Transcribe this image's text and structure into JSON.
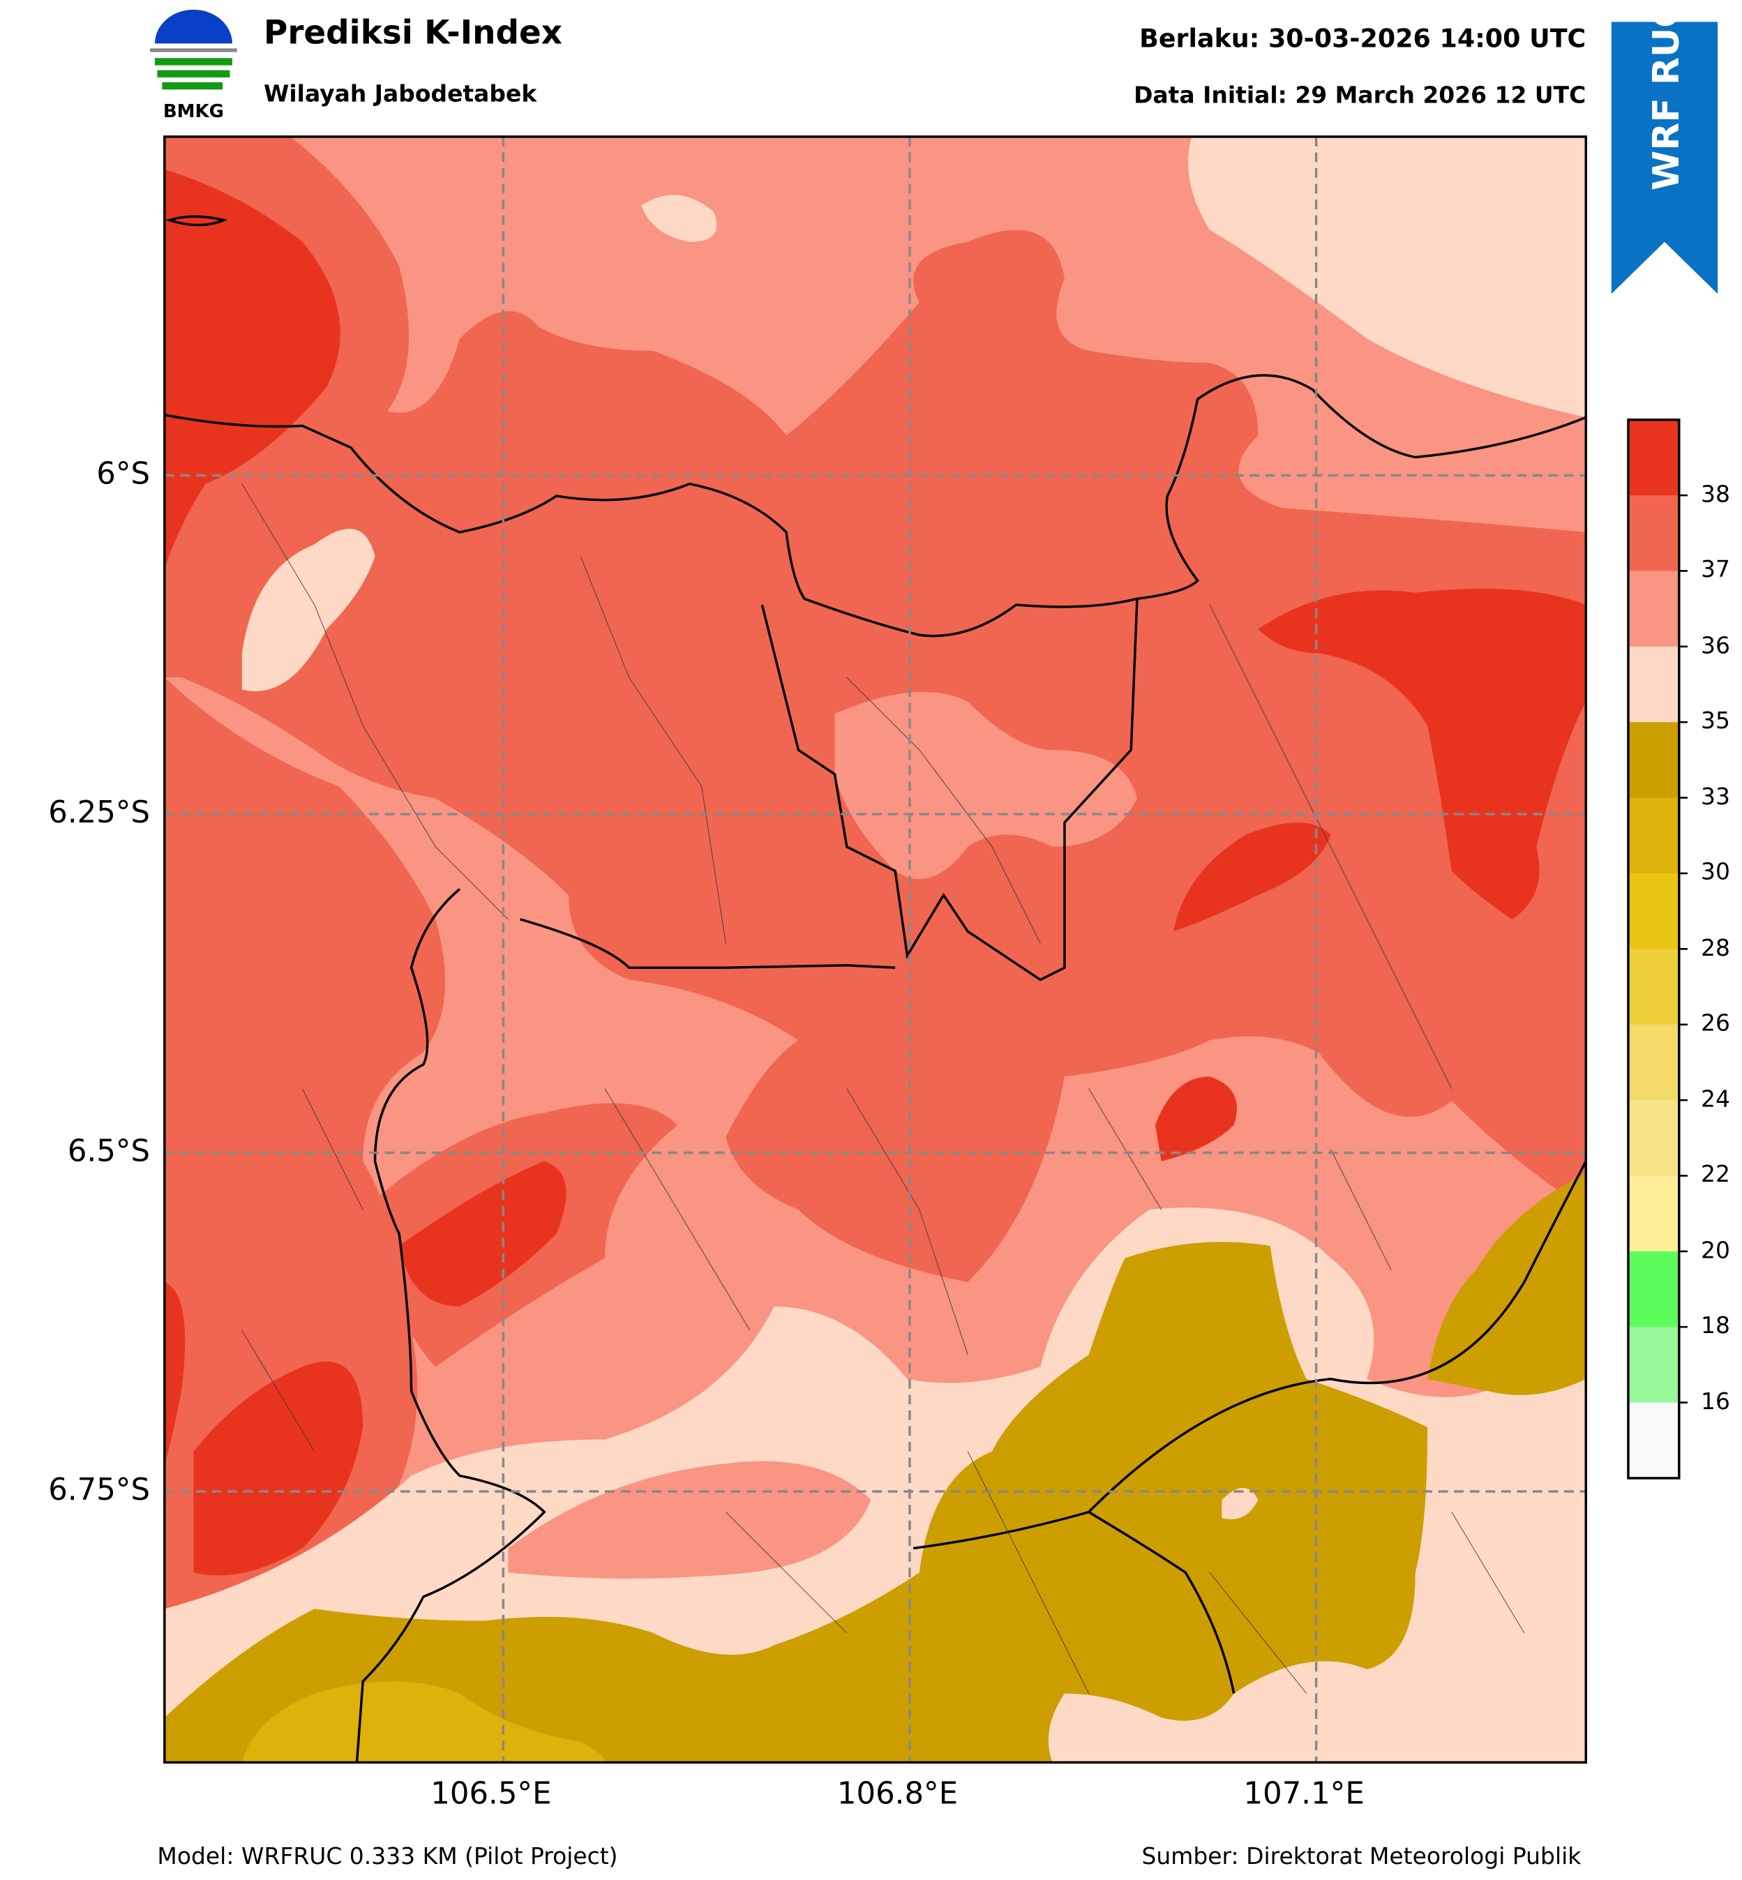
{
  "header": {
    "title": "Prediksi K-Index",
    "subtitle": "Wilayah Jabodetabek",
    "valid_time": "Berlaku: 30-03-2026 14:00 UTC",
    "initial_time": "Data Initial: 29 March 2026 12 UTC",
    "logo_text": "BMKG",
    "ribbon_text": "WRF RUC"
  },
  "axes": {
    "lat_labels": [
      "6°S",
      "6.25°S",
      "6.5°S",
      "6.75°S"
    ],
    "lon_labels": [
      "106.5°E",
      "106.8°E",
      "107.1°E"
    ]
  },
  "colorbar": {
    "tick_labels": [
      "38",
      "37",
      "36",
      "35",
      "33",
      "30",
      "28",
      "26",
      "24",
      "22",
      "20",
      "18",
      "16"
    ],
    "colors": [
      "#e8341f",
      "#f06650",
      "#f99582",
      "#fed9c6",
      "#cc9e00",
      "#dcb20b",
      "#e9c613",
      "#efcf3c",
      "#f4da68",
      "#f8e486",
      "#fded97",
      "#5bfc5b",
      "#99f899",
      "#f8f8f8"
    ]
  },
  "footer": {
    "model": "Model: WRFRUC 0.333 KM (Pilot Project)",
    "source": "Sumber: Direktorat Meteorologi Publik"
  }
}
